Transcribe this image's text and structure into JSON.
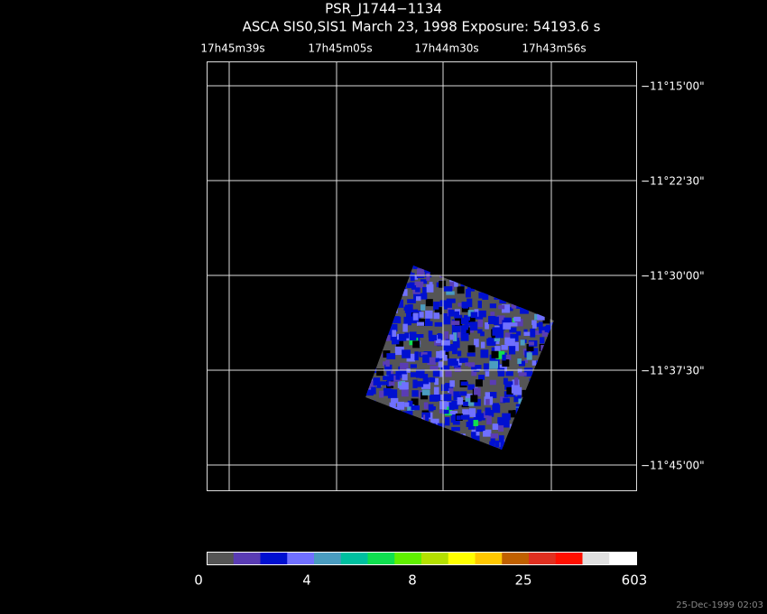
{
  "header": {
    "title": "PSR_J1744−1134",
    "subtitle": "ASCA SIS0,SIS1 March 23, 1998 Exposure: 54193.6 s"
  },
  "ra_labels": [
    "17h45m39s",
    "17h45m05s",
    "17h44m30s",
    "17h43m56s"
  ],
  "dec_labels": [
    "−11°15'00\"",
    "−11°22'30\"",
    "−11°30'00\"",
    "−11°37'30\"",
    "−11°45'00\""
  ],
  "colorbar": {
    "colors": [
      "#555555",
      "#5a3cb4",
      "#0010d0",
      "#7070ff",
      "#4a9cc0",
      "#00c0a0",
      "#10e050",
      "#60f000",
      "#b4e000",
      "#ffff00",
      "#ffc800",
      "#c06000",
      "#e03020",
      "#ff1000",
      "#e0e0e0",
      "#ffffff"
    ],
    "labels": [
      "0",
      "4",
      "8",
      "25",
      "603"
    ]
  },
  "timestamp": "25-Dec-1999 02:03"
}
